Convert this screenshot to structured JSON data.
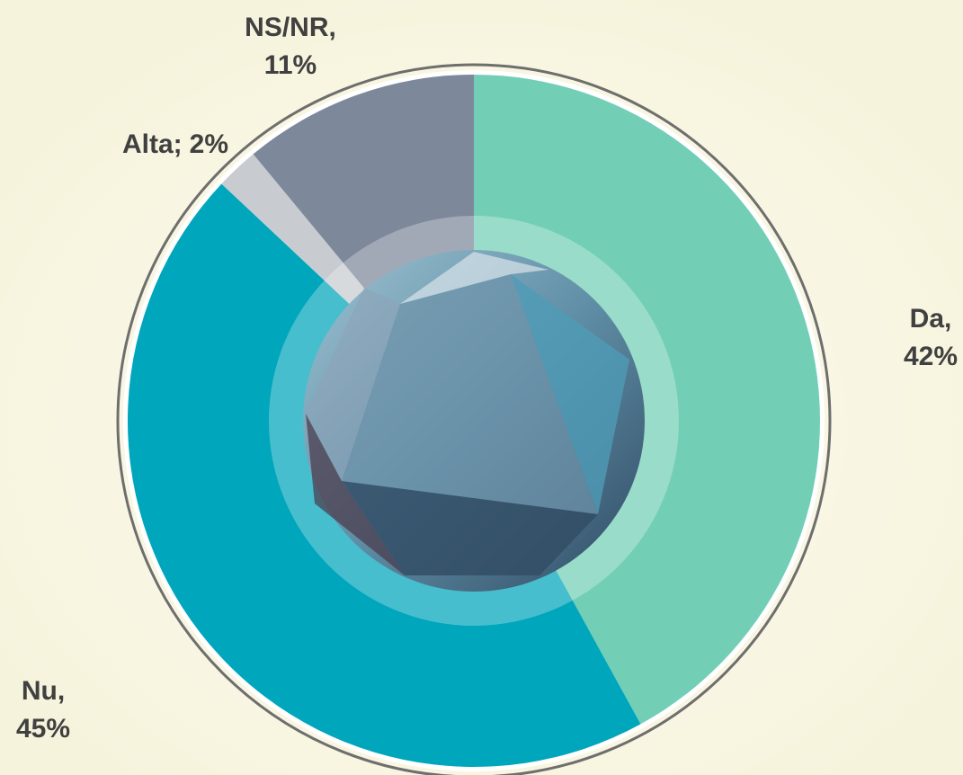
{
  "chart_data": {
    "type": "pie",
    "categories": [
      "Da,",
      "Nu,",
      "Alta;",
      "NS/NR,"
    ],
    "values": [
      42,
      45,
      2,
      11
    ],
    "value_labels": [
      "42%",
      "45%",
      "2%",
      "11%"
    ],
    "colors": [
      "#72cfb5",
      "#00a6bc",
      "#c8ccd0",
      "#7d889b"
    ]
  }
}
